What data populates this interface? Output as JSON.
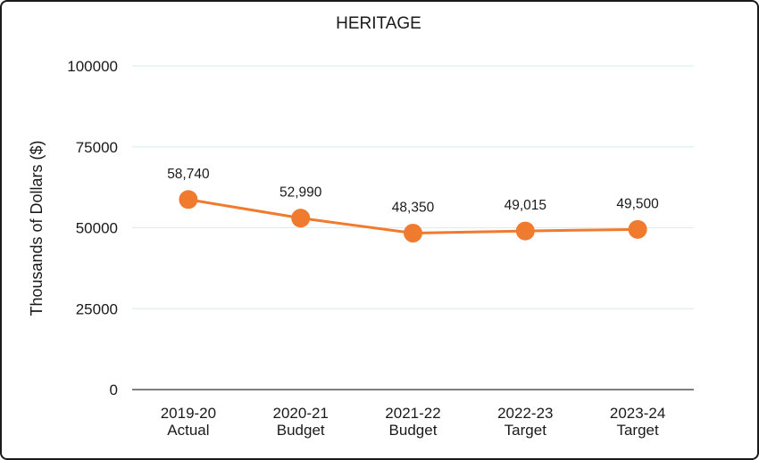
{
  "chart_data": {
    "type": "line",
    "title": "HERITAGE",
    "ylabel": "Thousands of Dollars ($)",
    "xlabel": "",
    "ylim": [
      0,
      100000
    ],
    "yticks": [
      0,
      25000,
      50000,
      75000,
      100000
    ],
    "grid": true,
    "categories": [
      [
        "2019-20",
        "Actual"
      ],
      [
        "2020-21",
        "Budget"
      ],
      [
        "2021-22",
        "Budget"
      ],
      [
        "2022-23",
        "Target"
      ],
      [
        "2023-24",
        "Target"
      ]
    ],
    "series": [
      {
        "values": [
          58740,
          52990,
          48350,
          49015,
          49500
        ],
        "labels": [
          "58,740",
          "52,990",
          "48,350",
          "49,015",
          "49,500"
        ],
        "color": "#f07a2e"
      }
    ],
    "colors": {
      "line": "#f07a2e",
      "grid": "#d6eef3",
      "axis": "#333333",
      "text": "#1a1a1a"
    }
  }
}
